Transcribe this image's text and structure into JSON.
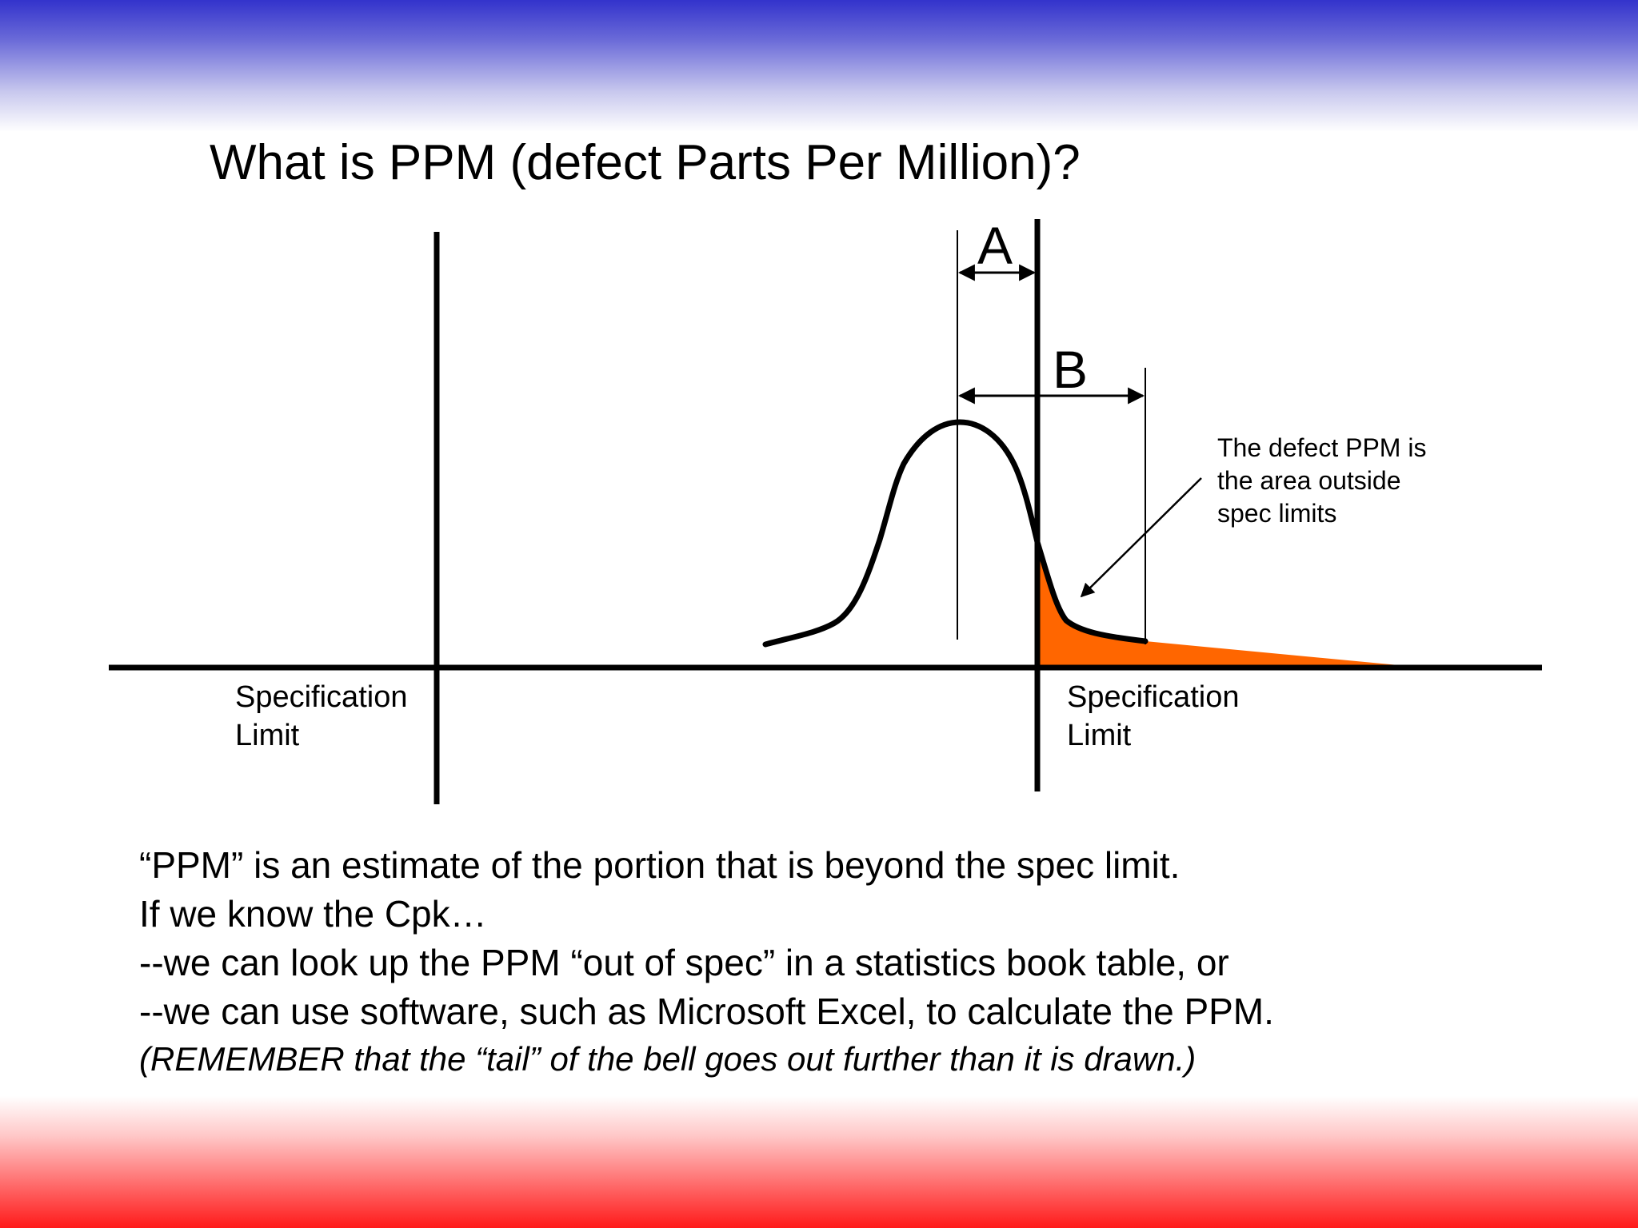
{
  "slide": {
    "title": "What is PPM (defect Parts Per Million)?"
  },
  "diagram": {
    "marker_a": "A",
    "marker_b": "B",
    "spec_limit_left": [
      "Specification",
      "Limit"
    ],
    "spec_limit_right": [
      "Specification",
      "Limit"
    ],
    "defect_note": [
      "The defect PPM is",
      "the area outside",
      "spec limits"
    ],
    "colors": {
      "defect_area": "#ff6600",
      "lines": "#000000",
      "top_band": "#3333cc",
      "bottom_band": "#ff1a1a"
    }
  },
  "body": {
    "lines": [
      "“PPM” is an estimate of the portion that is beyond the spec limit.",
      "If we know the Cpk…",
      "--we can look up the PPM “out of spec” in a statistics book table, or",
      "--we can use software, such as Microsoft Excel, to calculate the PPM."
    ],
    "remember": "(REMEMBER that the “tail” of the bell goes out further than it is drawn.)"
  }
}
